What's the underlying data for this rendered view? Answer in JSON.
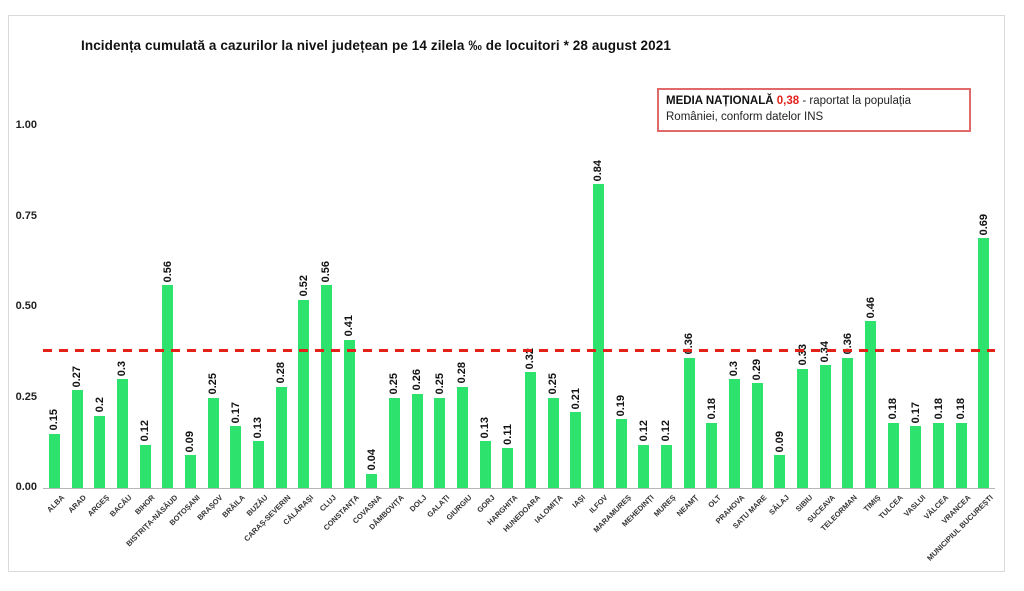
{
  "title": "Incidența cumulată a cazurilor la nivel județean pe 14 zilela ‰ de locuitori * 28 august 2021",
  "legend": {
    "label": "MEDIA NAȚIONALĂ",
    "value": "0,38",
    "suffix": "- raportat la populația României, conform datelor INS"
  },
  "colors": {
    "bar": "#2ee26e",
    "avg_line": "#e32119",
    "legend_border": "#e06a6a"
  },
  "chart_data": {
    "type": "bar",
    "title": "Incidența cumulată a cazurilor la nivel județean pe 14 zilela ‰ de locuitori * 28 august 2021",
    "xlabel": "",
    "ylabel": "",
    "ylim": [
      0,
      1.0
    ],
    "grid": false,
    "y_ticks": [
      "0.00",
      "0.25",
      "0.50",
      "0.75",
      "1.00"
    ],
    "national_average": 0.38,
    "legend_position": "top-right",
    "bar_color": "#2ee26e",
    "avg_line_color": "#e32119",
    "categories": [
      "ALBA",
      "ARAD",
      "ARGEȘ",
      "BACĂU",
      "BIHOR",
      "BISTRIȚA-NĂSĂUD",
      "BOTOȘANI",
      "BRAȘOV",
      "BRĂILA",
      "BUZĂU",
      "CARAȘ-SEVERIN",
      "CĂLĂRAȘI",
      "CLUJ",
      "CONSTANȚA",
      "COVASNA",
      "DÂMBOVIȚA",
      "DOLJ",
      "GALAȚI",
      "GIURGIU",
      "GORJ",
      "HARGHITA",
      "HUNEDOARA",
      "IALOMIȚA",
      "IAȘI",
      "ILFOV",
      "MARAMUREȘ",
      "MEHEDINȚI",
      "MUREȘ",
      "NEAMȚ",
      "OLT",
      "PRAHOVA",
      "SATU MARE",
      "SĂLAJ",
      "SIBIU",
      "SUCEAVA",
      "TELEORMAN",
      "TIMIȘ",
      "TULCEA",
      "VASLUI",
      "VÂLCEA",
      "VRANCEA",
      "MUNICIPIUL BUCUREȘTI"
    ],
    "values": [
      0.15,
      0.27,
      0.2,
      0.3,
      0.12,
      0.56,
      0.09,
      0.25,
      0.17,
      0.13,
      0.28,
      0.52,
      0.56,
      0.41,
      0.04,
      0.25,
      0.26,
      0.25,
      0.28,
      0.13,
      0.11,
      0.32,
      0.25,
      0.21,
      0.84,
      0.19,
      0.12,
      0.12,
      0.36,
      0.18,
      0.3,
      0.29,
      0.09,
      0.33,
      0.34,
      0.36,
      0.46,
      0.18,
      0.17,
      0.18,
      0.18,
      0.69
    ]
  }
}
